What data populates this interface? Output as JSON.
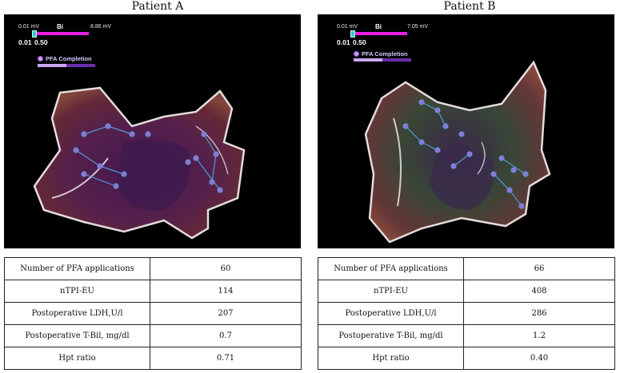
{
  "patients": [
    {
      "title": "Patient A",
      "scale": {
        "min_label": "0.01 mV",
        "mode": "Bi",
        "max_label": "8.86 mV",
        "low": "0.01",
        "high": "0.50"
      },
      "overlay_label": "PFA Completion",
      "rows": [
        {
          "label": "Number of PFA applications",
          "value": "60"
        },
        {
          "label": "nTPI-EU",
          "value": "114"
        },
        {
          "label": "Postoperative LDH,U/l",
          "value": "207"
        },
        {
          "label": "Postoperative T-Bil, mg/dl",
          "value": "0.7"
        },
        {
          "label": "Hpt ratio",
          "value": "0.71"
        }
      ]
    },
    {
      "title": "Patient B",
      "scale": {
        "min_label": "0.01 mV",
        "mode": "Bi",
        "max_label": "7.05 mV",
        "low": "0.01",
        "high": "0.50"
      },
      "overlay_label": "PFA Completion",
      "rows": [
        {
          "label": "Number of PFA applications",
          "value": "66"
        },
        {
          "label": "nTPI-EU",
          "value": "408"
        },
        {
          "label": "Postoperative LDH,U/l",
          "value": "286"
        },
        {
          "label": "Postoperative T-Bil, mg/dl",
          "value": "1.2"
        },
        {
          "label": "Hpt ratio",
          "value": "0.40"
        }
      ]
    }
  ]
}
